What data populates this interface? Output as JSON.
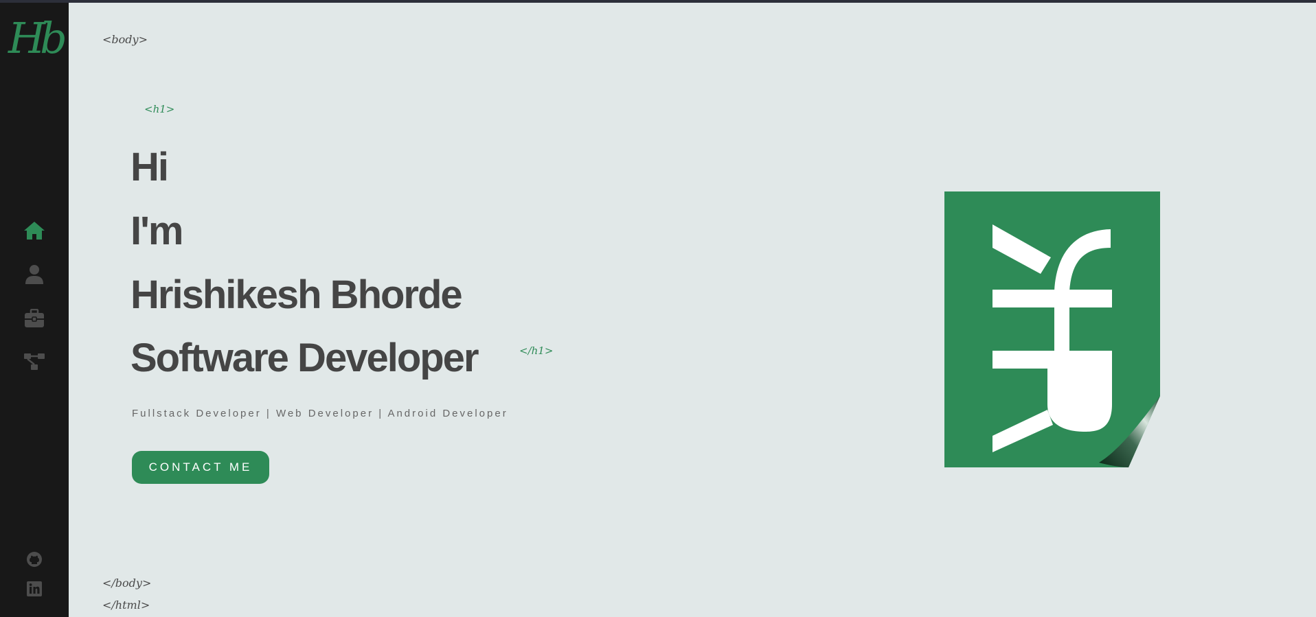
{
  "brand": {
    "logo_text": "Hb"
  },
  "sidebar": {
    "nav": [
      {
        "name": "home",
        "icon": "home-icon",
        "active": true
      },
      {
        "name": "about",
        "icon": "user-icon",
        "active": false
      },
      {
        "name": "portfolio",
        "icon": "briefcase-icon",
        "active": false
      },
      {
        "name": "contact",
        "icon": "network-icon",
        "active": false
      }
    ],
    "social": [
      {
        "name": "github",
        "icon": "github-icon"
      },
      {
        "name": "linkedin",
        "icon": "linkedin-icon"
      }
    ]
  },
  "tags": {
    "body_open": "<body>",
    "h1_open": "<h1>",
    "h1_close": "</h1>",
    "body_close": "</body>",
    "html_close": "</html>"
  },
  "hero": {
    "line1": "Hi",
    "line2": "I'm",
    "line3": "Hrishikesh Bhorde",
    "line4": "Software Developer",
    "subtitle": "Fullstack Developer | Web Developer | Android Developer",
    "cta_label": "CONTACT ME"
  },
  "colors": {
    "accent": "#2e8b57",
    "background": "#e1e8e8",
    "sidebar": "#181818",
    "text": "#454545",
    "icon_inactive": "#4d4d4d"
  }
}
